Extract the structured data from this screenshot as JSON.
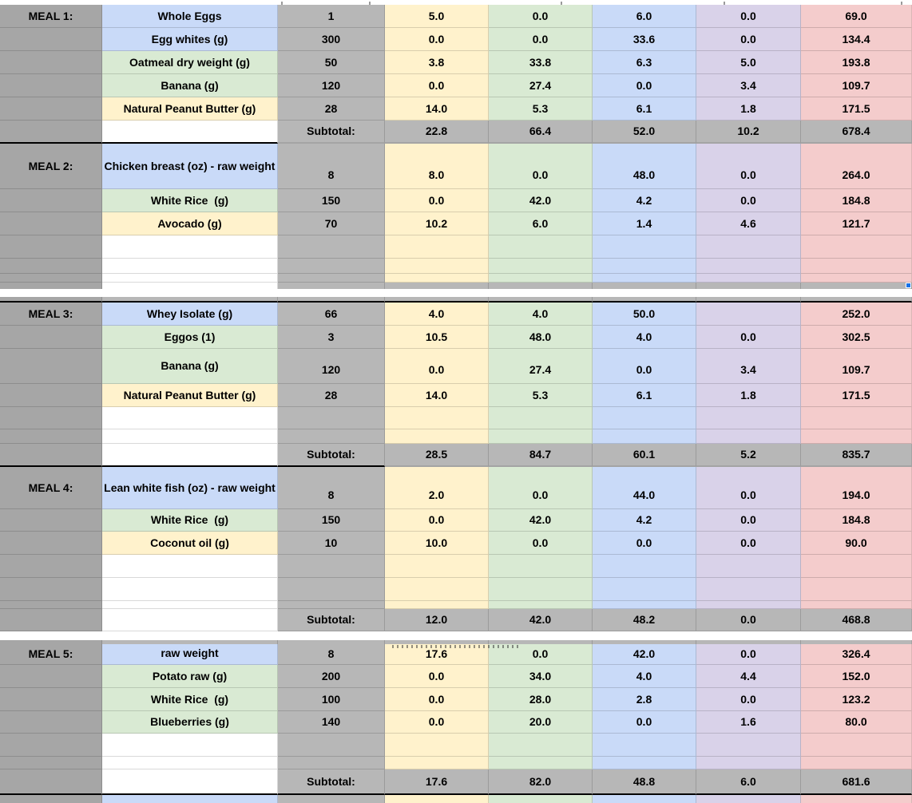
{
  "app": {
    "description_title": "Meal plan macro spreadsheet"
  },
  "palette": {
    "blue": "#c9daf8",
    "green": "#d9ead3",
    "yellow": "#fff2cc",
    "purple": "#d9d2e9",
    "pink": "#f4cccc",
    "gray": "#b7b7b7",
    "gray_dark": "#a6a6a6",
    "white": "#ffffff",
    "selection_handle_blue": "#1a73e8"
  },
  "value_columns": [
    "yellow",
    "green",
    "blue",
    "purple",
    "pink"
  ],
  "sections": [
    {
      "rows": [
        {
          "kind": "sliver",
          "style": "top-white"
        },
        {
          "kind": "item",
          "meal": "MEAL 1:",
          "label": "Whole Eggs",
          "color": "blue",
          "qty": "1",
          "values": [
            "5.0",
            "0.0",
            "6.0",
            "0.0",
            "69.0"
          ]
        },
        {
          "kind": "item",
          "label": "Egg whites (g)",
          "color": "blue",
          "qty": "300",
          "values": [
            "0.0",
            "0.0",
            "33.6",
            "0.0",
            "134.4"
          ]
        },
        {
          "kind": "item",
          "label": "Oatmeal dry weight (g)",
          "color": "green",
          "qty": "50",
          "values": [
            "3.8",
            "33.8",
            "6.3",
            "5.0",
            "193.8"
          ]
        },
        {
          "kind": "item",
          "label": "Banana (g)",
          "color": "green",
          "qty": "120",
          "values": [
            "0.0",
            "27.4",
            "0.0",
            "3.4",
            "109.7"
          ]
        },
        {
          "kind": "item",
          "label": "Natural Peanut Butter (g)",
          "color": "yellow",
          "qty": "28",
          "values": [
            "14.0",
            "5.3",
            "6.1",
            "1.8",
            "171.5"
          ]
        },
        {
          "kind": "subtotal",
          "label": "Subtotal:",
          "values": [
            "22.8",
            "66.4",
            "52.0",
            "10.2",
            "678.4"
          ],
          "border": "cols12"
        },
        {
          "kind": "item",
          "meal": "MEAL 2:",
          "label": "Chicken breast (oz) - raw weight",
          "color": "blue",
          "qty": "8",
          "values": [
            "8.0",
            "0.0",
            "48.0",
            "0.0",
            "264.0"
          ],
          "tall": true
        },
        {
          "kind": "item",
          "label": "White Rice  (g)",
          "color": "green",
          "qty": "150",
          "values": [
            "0.0",
            "42.0",
            "4.2",
            "0.0",
            "184.8"
          ]
        },
        {
          "kind": "item",
          "label": "Avocado (g)",
          "color": "yellow",
          "qty": "70",
          "values": [
            "10.2",
            "6.0",
            "1.4",
            "4.6",
            "121.7"
          ]
        },
        {
          "kind": "empty"
        },
        {
          "kind": "empty"
        },
        {
          "kind": "empty"
        },
        {
          "kind": "sliver",
          "style": "subtotal-top",
          "handle": true
        }
      ]
    },
    {
      "rows": [
        {
          "kind": "sliver",
          "style": "gray-full",
          "border": "full-black"
        },
        {
          "kind": "item",
          "meal": "MEAL 3:",
          "label": "Whey Isolate (g)",
          "color": "blue",
          "qty": "66",
          "values": [
            "4.0",
            "4.0",
            "50.0",
            "",
            "252.0"
          ]
        },
        {
          "kind": "item",
          "label": "Eggos (1)",
          "color": "green",
          "qty": "3",
          "values": [
            "10.5",
            "48.0",
            "4.0",
            "0.0",
            "302.5"
          ]
        },
        {
          "kind": "item",
          "label": "Banana (g)",
          "color": "green",
          "qty": "120",
          "values": [
            "0.0",
            "27.4",
            "0.0",
            "3.4",
            "109.7"
          ],
          "tall": true
        },
        {
          "kind": "item",
          "label": "Natural Peanut Butter (g)",
          "color": "yellow",
          "qty": "28",
          "values": [
            "14.0",
            "5.3",
            "6.1",
            "1.8",
            "171.5"
          ]
        },
        {
          "kind": "empty"
        },
        {
          "kind": "empty"
        },
        {
          "kind": "subtotal",
          "label": "Subtotal:",
          "values": [
            "28.5",
            "84.7",
            "60.1",
            "5.2",
            "835.7"
          ],
          "border": "cols123"
        },
        {
          "kind": "item",
          "meal": "MEAL 4:",
          "label": "Lean white fish (oz) - raw weight",
          "color": "blue",
          "qty": "8",
          "values": [
            "2.0",
            "0.0",
            "44.0",
            "0.0",
            "194.0"
          ],
          "tall": true
        },
        {
          "kind": "item",
          "label": "White Rice  (g)",
          "color": "green",
          "qty": "150",
          "values": [
            "0.0",
            "42.0",
            "4.2",
            "0.0",
            "184.8"
          ]
        },
        {
          "kind": "item",
          "label": "Coconut oil (g)",
          "color": "yellow",
          "qty": "10",
          "values": [
            "10.0",
            "0.0",
            "0.0",
            "0.0",
            "90.0"
          ]
        },
        {
          "kind": "empty"
        },
        {
          "kind": "empty"
        },
        {
          "kind": "empty"
        },
        {
          "kind": "subtotal",
          "label": "Subtotal:",
          "values": [
            "12.0",
            "42.0",
            "48.2",
            "0.0",
            "468.8"
          ],
          "border": "none"
        }
      ]
    },
    {
      "rows": [
        {
          "kind": "sliver",
          "style": "gray-full"
        },
        {
          "kind": "item",
          "meal": "MEAL 5:",
          "label": "raw weight",
          "color": "blue",
          "qty": "8",
          "values": [
            "17.6",
            "0.0",
            "42.0",
            "0.0",
            "326.4"
          ],
          "clipped_top": true
        },
        {
          "kind": "item",
          "label": "Potato raw (g)",
          "color": "green",
          "qty": "200",
          "values": [
            "0.0",
            "34.0",
            "4.0",
            "4.4",
            "152.0"
          ]
        },
        {
          "kind": "item",
          "label": "White Rice  (g)",
          "color": "green",
          "qty": "100",
          "values": [
            "0.0",
            "28.0",
            "2.8",
            "0.0",
            "123.2"
          ]
        },
        {
          "kind": "item",
          "label": "Blueberries (g)",
          "color": "green",
          "qty": "140",
          "values": [
            "0.0",
            "20.0",
            "0.0",
            "1.6",
            "80.0"
          ]
        },
        {
          "kind": "empty"
        },
        {
          "kind": "empty"
        },
        {
          "kind": "subtotal",
          "label": "Subtotal:",
          "values": [
            "17.6",
            "82.0",
            "48.8",
            "6.0",
            "681.6"
          ],
          "border": "full-black"
        },
        {
          "kind": "sliver",
          "style": "colored"
        }
      ]
    }
  ]
}
